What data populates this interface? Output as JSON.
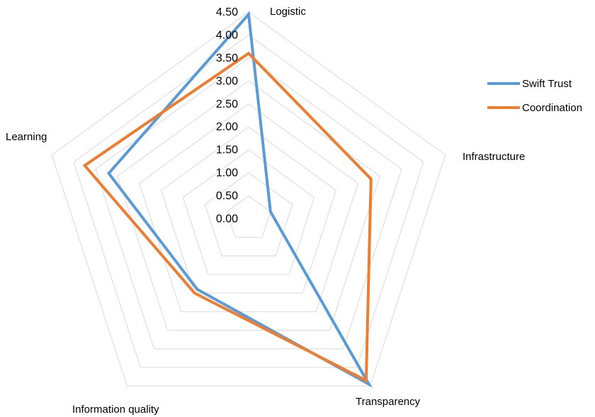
{
  "chart_data": {
    "type": "radar",
    "categories": [
      "Logistic",
      "Infrastructure",
      "Transparency",
      "Information quality",
      "Learning"
    ],
    "radial_ticks": [
      "0.00",
      "0.50",
      "1.00",
      "1.50",
      "2.00",
      "2.50",
      "3.00",
      "3.50",
      "4.00",
      "4.50"
    ],
    "rlim": [
      0,
      4.5
    ],
    "grid": true,
    "legend_position": "right",
    "series": [
      {
        "name": "Swift Trust",
        "color": "#5b9bd5",
        "values": [
          4.45,
          0.5,
          4.45,
          1.9,
          3.2
        ]
      },
      {
        "name": "Coordination",
        "color": "#ed7d31",
        "values": [
          3.6,
          2.8,
          4.35,
          2.0,
          3.75
        ]
      }
    ]
  }
}
